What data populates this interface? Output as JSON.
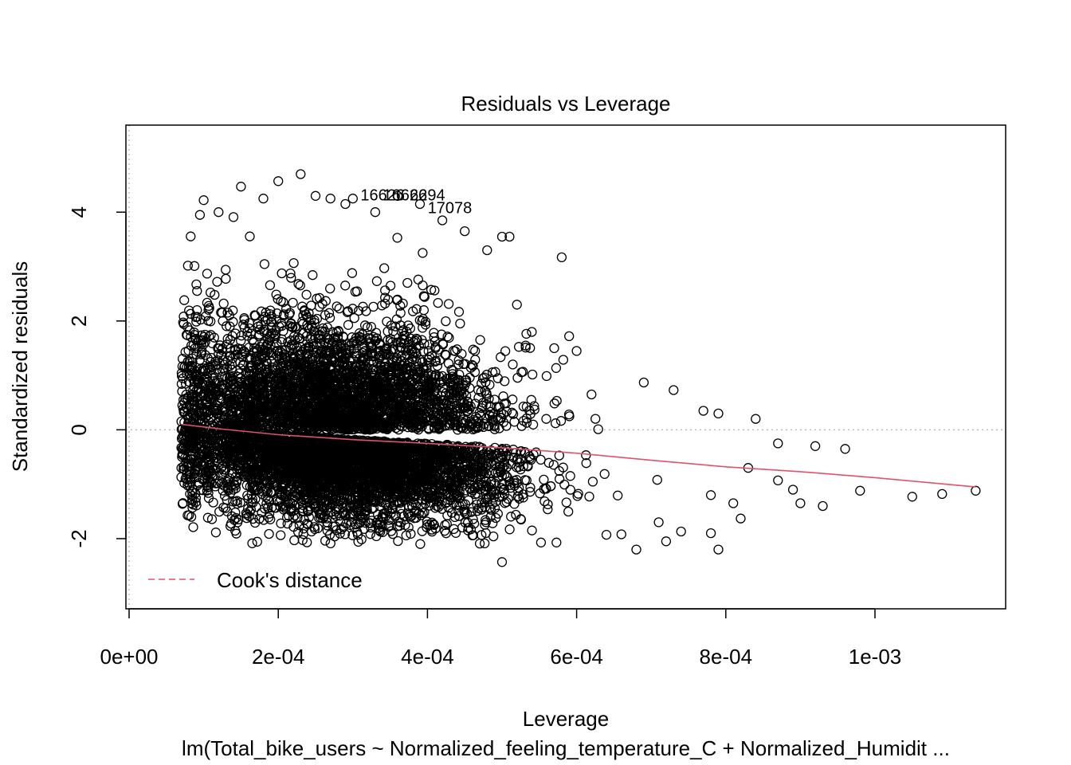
{
  "chart_data": {
    "type": "scatter",
    "title": "Residuals vs Leverage",
    "xlabel": "Leverage",
    "ylabel": "Standardized residuals",
    "subtitle": "lm(Total_bike_users ~ Normalized_feeling_temperature_C + Normalized_Humidit ...",
    "xlim": [
      -4.28e-06,
      0.0011752
    ],
    "ylim": [
      -3.29,
      5.6
    ],
    "x_ticks": [
      {
        "value": 0,
        "label": "0e+00"
      },
      {
        "value": 0.0002,
        "label": "2e-04"
      },
      {
        "value": 0.0004,
        "label": "4e-04"
      },
      {
        "value": 0.0006,
        "label": "6e-04"
      },
      {
        "value": 0.0008,
        "label": "8e-04"
      },
      {
        "value": 0.001,
        "label": "1e-03"
      }
    ],
    "y_ticks": [
      {
        "value": -2,
        "label": "-2"
      },
      {
        "value": 0,
        "label": "0"
      },
      {
        "value": 2,
        "label": "2"
      },
      {
        "value": 4,
        "label": "4"
      }
    ],
    "reference_lines": {
      "x": 0,
      "y": 0
    },
    "grid": false,
    "legend": {
      "position": "bottom-left",
      "entries": [
        {
          "label": "Cook's distance",
          "color": "#DF536B",
          "style": "dashed"
        }
      ]
    },
    "smoother": {
      "color": "#DF536B",
      "x": [
        7e-05,
        0.00012,
        0.0002,
        0.0003,
        0.0004,
        0.0005,
        0.0006,
        0.0007,
        0.0008,
        0.0009,
        0.001,
        0.001135
      ],
      "y": [
        0.1,
        0.02,
        -0.09,
        -0.18,
        -0.25,
        -0.33,
        -0.43,
        -0.56,
        -0.68,
        -0.77,
        -0.88,
        -1.05
      ]
    },
    "labeled_points": [
      {
        "label": "16626",
        "x": 0.00034,
        "y": 4.33
      },
      {
        "label": "16626",
        "x": 0.00037,
        "y": 4.33
      },
      {
        "label": "6294",
        "x": 0.0004,
        "y": 4.33
      },
      {
        "label": "17078",
        "x": 0.00043,
        "y": 4.1
      }
    ],
    "sample_points": [
      [
        7e-05,
        -0.33
      ],
      [
        7e-05,
        -0.87
      ],
      [
        9.5e-05,
        3.95
      ],
      [
        0.0001,
        4.22
      ],
      [
        0.00012,
        4.0
      ],
      [
        0.00014,
        3.91
      ],
      [
        0.00015,
        4.47
      ],
      [
        0.00018,
        4.25
      ],
      [
        0.0002,
        4.57
      ],
      [
        0.00023,
        4.7
      ],
      [
        0.00025,
        4.3
      ],
      [
        0.00027,
        4.25
      ],
      [
        0.00029,
        4.15
      ],
      [
        0.0003,
        4.25
      ],
      [
        0.00033,
        4.0
      ],
      [
        0.00036,
        4.3
      ],
      [
        0.00039,
        4.15
      ],
      [
        0.00042,
        3.85
      ],
      [
        0.00045,
        3.65
      ],
      [
        0.00048,
        3.3
      ],
      [
        0.0005,
        3.55
      ],
      [
        0.00051,
        3.55
      ],
      [
        0.00058,
        3.17
      ],
      [
        0.00052,
        2.3
      ],
      [
        0.00054,
        1.8
      ],
      [
        0.00057,
        1.5
      ],
      [
        0.00059,
        1.72
      ],
      [
        0.0006,
        1.45
      ],
      [
        0.00062,
        0.65
      ],
      [
        0.00069,
        0.87
      ],
      [
        0.00073,
        0.73
      ],
      [
        0.00077,
        0.35
      ],
      [
        0.00079,
        0.3
      ],
      [
        0.00084,
        0.2
      ],
      [
        0.00087,
        -0.25
      ],
      [
        0.00092,
        -0.3
      ],
      [
        0.00096,
        -0.35
      ],
      [
        0.00083,
        -0.7
      ],
      [
        0.00087,
        -0.93
      ],
      [
        0.00089,
        -1.1
      ],
      [
        0.0009,
        -1.35
      ],
      [
        0.00093,
        -1.4
      ],
      [
        0.00098,
        -1.12
      ],
      [
        0.00105,
        -1.23
      ],
      [
        0.00109,
        -1.18
      ],
      [
        0.001135,
        -1.12
      ],
      [
        0.00068,
        -2.2
      ],
      [
        0.00072,
        -2.05
      ],
      [
        0.00078,
        -1.9
      ],
      [
        0.00079,
        -2.2
      ],
      [
        0.0005,
        -2.43
      ],
      [
        0.00064,
        -1.93
      ],
      [
        0.00066,
        -1.92
      ],
      [
        0.00074,
        -1.87
      ],
      [
        0.00082,
        -1.63
      ],
      [
        0.00078,
        -1.2
      ],
      [
        0.00081,
        -1.35
      ],
      [
        0.00071,
        -1.7
      ]
    ]
  }
}
